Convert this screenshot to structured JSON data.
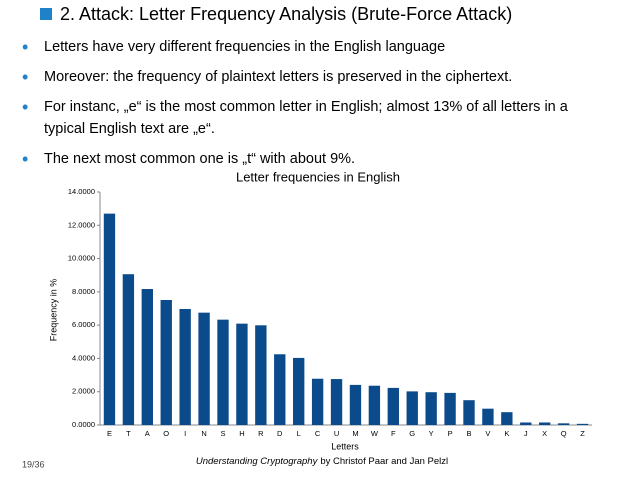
{
  "title": "2. Attack: Letter Frequency Analysis (Brute-Force Attack)",
  "bullets": [
    {
      "lines": [
        "Letters have very different frequencies in the English language"
      ]
    },
    {
      "lines": [
        "Moreover: the frequency of plaintext letters is preserved in the ciphertext."
      ]
    },
    {
      "lines": [
        "For instanc, „e“  is the most common letter in English; almost 13% of all letters in a",
        "typical English text are „e“."
      ]
    },
    {
      "lines": [
        "The next most common one is „t“ with about 9%."
      ]
    }
  ],
  "footer": {
    "page": "19/36",
    "book": "Understanding Cryptography",
    "authors": "by Christof Paar and Jan Pelzl"
  },
  "chart_data": {
    "type": "bar",
    "title": "Letter frequencies in English",
    "x_label": "Letters",
    "y_label": "Frequency in %",
    "categories": [
      "E",
      "T",
      "A",
      "O",
      "I",
      "N",
      "S",
      "H",
      "R",
      "D",
      "L",
      "C",
      "U",
      "M",
      "W",
      "F",
      "G",
      "Y",
      "P",
      "B",
      "V",
      "K",
      "J",
      "X",
      "Q",
      "Z"
    ],
    "values": [
      12.7,
      9.06,
      8.17,
      7.51,
      6.97,
      6.75,
      6.33,
      6.09,
      5.99,
      4.25,
      4.03,
      2.78,
      2.76,
      2.41,
      2.36,
      2.23,
      2.02,
      1.97,
      1.93,
      1.49,
      0.98,
      0.77,
      0.15,
      0.15,
      0.1,
      0.07
    ],
    "color": "#0b4a8b",
    "ylim": [
      0,
      14
    ],
    "yticks": [
      {
        "value": 0,
        "label": "0.0000"
      },
      {
        "value": 2,
        "label": "2.0000"
      },
      {
        "value": 4,
        "label": "4.0000"
      },
      {
        "value": 6,
        "label": "6.0000"
      },
      {
        "value": 8,
        "label": "8.0000"
      },
      {
        "value": 10,
        "label": "10.0000"
      },
      {
        "value": 12,
        "label": "12.0000"
      },
      {
        "value": 14,
        "label": "14.0000"
      }
    ],
    "grid": false
  }
}
